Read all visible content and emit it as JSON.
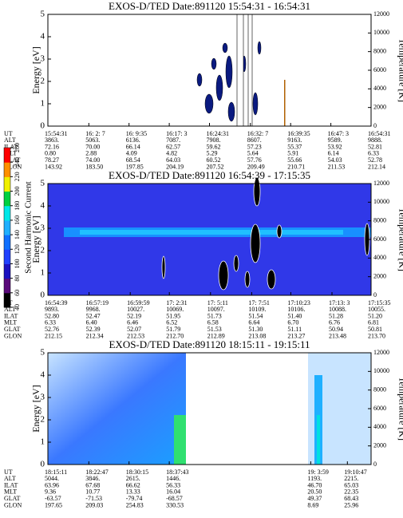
{
  "colorbar": {
    "label": "Second Harmonic Current",
    "ticks": [
      40,
      60,
      80,
      100,
      120,
      140,
      160,
      180,
      200,
      220,
      240,
      260
    ],
    "colors": [
      "#000000",
      "#5a0a7a",
      "#1a10c0",
      "#2040ff",
      "#1070ff",
      "#20b0ff",
      "#00e8e8",
      "#00d040",
      "#f0f000",
      "#ff9000",
      "#ff0000"
    ]
  },
  "chart_data": [
    {
      "type": "heatmap",
      "title": "EXOS-D/TED   Date:891120   15:54:31 - 16:54:31",
      "ylabel": "Energy [eV]",
      "y2label": "Temperature [K]",
      "ylim": [
        0,
        5
      ],
      "yticks": [
        0,
        1,
        2,
        3,
        4,
        5
      ],
      "y2lim": [
        0,
        12000
      ],
      "y2ticks": [
        0,
        2000,
        4000,
        6000,
        8000,
        10000,
        12000
      ],
      "row_labels": [
        "UT",
        "ALT",
        "ILAT",
        "MLT",
        "GLAT",
        "GLON"
      ],
      "columns": [
        [
          "15:54:31",
          "3863.",
          "72.16",
          "0.80",
          "78.27",
          "143.92"
        ],
        [
          "16: 2: 7",
          "5063.",
          "70.00",
          "2.88",
          "74.00",
          "183.50"
        ],
        [
          "16: 9:35",
          "6136.",
          "66.14",
          "4.09",
          "68.54",
          "197.85"
        ],
        [
          "16:17: 3",
          "7087.",
          "62.57",
          "4.82",
          "64.03",
          "204.19"
        ],
        [
          "16:24:31",
          "7908.",
          "59.62",
          "5.29",
          "60.52",
          "207.52"
        ],
        [
          "16:32: 7",
          "8607.",
          "57.23",
          "5.64",
          "57.76",
          "209.49"
        ],
        [
          "16:39:35",
          "9163.",
          "55.37",
          "5.91",
          "55.66",
          "210.71"
        ],
        [
          "16:47: 3",
          "9589.",
          "53.92",
          "6.14",
          "54.03",
          "211.53"
        ],
        [
          "16:54:31",
          "9888.",
          "52.81",
          "6.33",
          "52.78",
          "212.14"
        ]
      ]
    },
    {
      "type": "heatmap",
      "title": "EXOS-D/TED   Date:891120   16:54:39 - 17:15:35",
      "ylabel": "Energy [eV]",
      "y2label": "Temperature [K]",
      "ylim": [
        0,
        5
      ],
      "yticks": [
        0,
        1,
        2,
        3,
        4,
        5
      ],
      "y2lim": [
        0,
        12000
      ],
      "y2ticks": [
        0,
        2000,
        4000,
        6000,
        8000,
        10000,
        12000
      ],
      "row_labels": [
        "UT",
        "ALT",
        "ILAT",
        "MLT",
        "GLAT",
        "GLON"
      ],
      "columns": [
        [
          "16:54:39",
          "9893.",
          "52.80",
          "6.33",
          "52.76",
          "212.15"
        ],
        [
          "16:57:19",
          "9968.",
          "52.47",
          "6.40",
          "52.39",
          "212.34"
        ],
        [
          "16:59:59",
          "10027.",
          "52.19",
          "6.46",
          "52.07",
          "212.53"
        ],
        [
          "17: 2:31",
          "10069.",
          "51.95",
          "6.52",
          "51.79",
          "212.70"
        ],
        [
          "17: 5:11",
          "10097.",
          "51.73",
          "6.58",
          "51.53",
          "212.89"
        ],
        [
          "17: 7:51",
          "10109.",
          "51.54",
          "6.64",
          "51.30",
          "213.08"
        ],
        [
          "17:10:23",
          "10106.",
          "51.40",
          "6.70",
          "51.11",
          "213.27"
        ],
        [
          "17:13: 3",
          "10088.",
          "51.28",
          "6.76",
          "50.94",
          "213.48"
        ],
        [
          "17:15:35",
          "10055.",
          "51.20",
          "6.81",
          "50.81",
          "213.70"
        ]
      ]
    },
    {
      "type": "heatmap",
      "title": "EXOS-D/TED   Date:891120   18:15:11 - 19:15:11",
      "ylabel": "Energy [eV]",
      "y2label": "Temperature [K]",
      "ylim": [
        0,
        5
      ],
      "yticks": [
        0,
        1,
        2,
        3,
        4,
        5
      ],
      "y2lim": [
        0,
        12000
      ],
      "y2ticks": [
        0,
        2000,
        4000,
        6000,
        8000,
        10000,
        12000
      ],
      "row_labels": [
        "UT",
        "ALT",
        "ILAT",
        "MLT",
        "GLAT",
        "GLON"
      ],
      "columns": [
        [
          "18:15:11",
          "5044.",
          "63.96",
          "9.36",
          "-63.57",
          "197.65"
        ],
        [
          "18:22:47",
          "3846.",
          "67.68",
          "10.77",
          "-71.53",
          "209.03"
        ],
        [
          "18:30:15",
          "2615.",
          "66.62",
          "13.33",
          "-79.74",
          "254.83"
        ],
        [
          "18:37:43",
          "1446.",
          "56.33",
          "16.04",
          "-68.57",
          "330.53"
        ],
        [
          "19: 3:59",
          "1193.",
          "46.70",
          "20.50",
          "49.37",
          "8.69"
        ],
        [
          "19:10:47",
          "2215.",
          "65.03",
          "22.35",
          "68.43",
          "25.96"
        ]
      ]
    }
  ]
}
